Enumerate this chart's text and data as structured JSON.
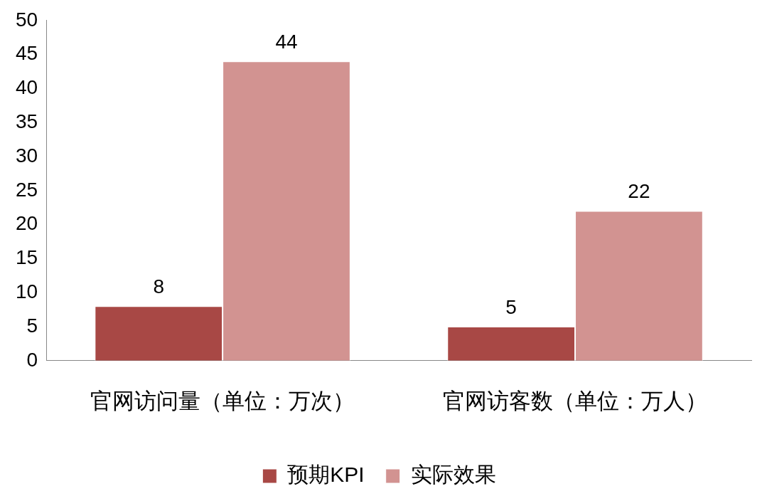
{
  "chart_data": {
    "type": "bar",
    "categories": [
      "官网访问量（单位：万次）",
      "官网访客数（单位：万人）"
    ],
    "series": [
      {
        "name": "预期KPI",
        "color": "#a84845",
        "values": [
          8,
          5
        ]
      },
      {
        "name": "实际效果",
        "color": "#d29391",
        "values": [
          44,
          22
        ]
      }
    ],
    "ylim": [
      0,
      50
    ],
    "yticks": [
      0,
      5,
      10,
      15,
      20,
      25,
      30,
      35,
      40,
      45,
      50
    ],
    "grid": false,
    "legend": "bottom",
    "data_labels": true
  }
}
